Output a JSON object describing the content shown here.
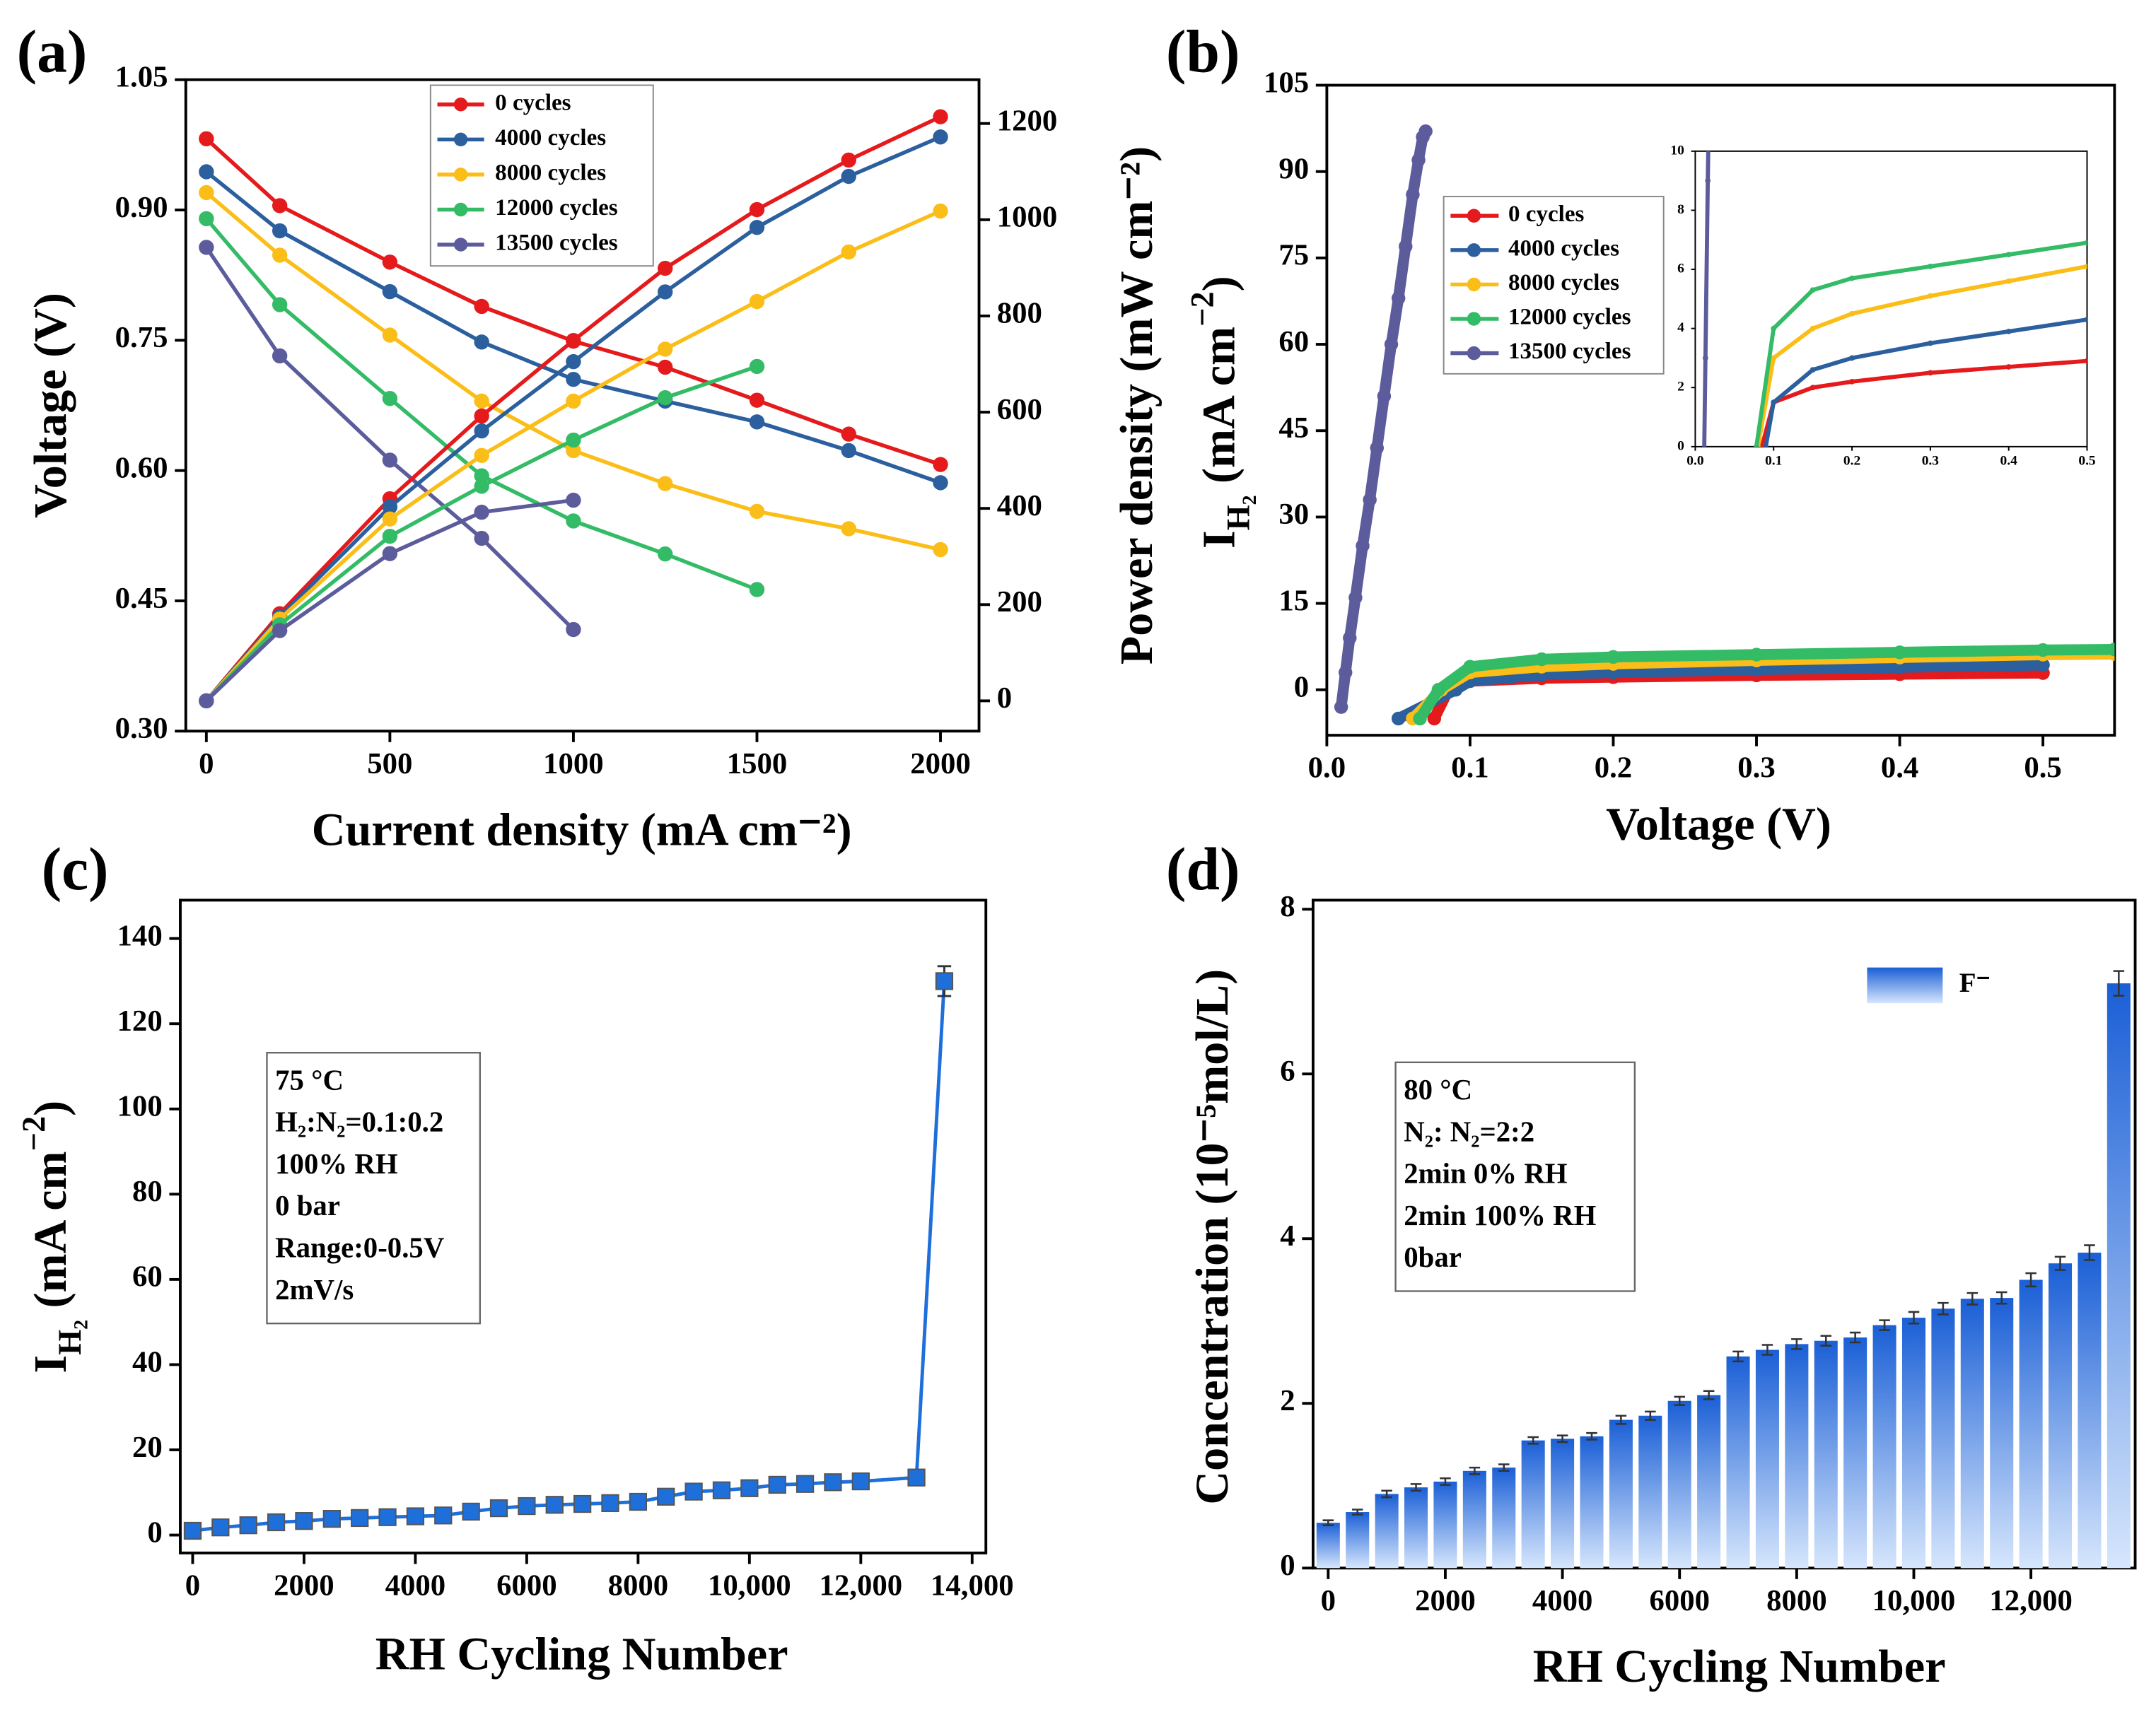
{
  "chart_data": [
    {
      "type": "line",
      "panel_label": "(a)",
      "x_label": "Current density (mA cm⁻²)",
      "y_label": "Voltage (V)",
      "y2_label": "Power density (mW cm⁻²)",
      "x": [
        0,
        200,
        500,
        750,
        1000,
        1250,
        1500,
        1750,
        2000
      ],
      "xlim": [
        -56,
        2105
      ],
      "xticks": [
        0,
        500,
        1000,
        1500,
        2000
      ],
      "ylim": [
        0.3,
        1.05
      ],
      "yticks": [
        {
          "value": 0.3,
          "label": "0.30"
        },
        {
          "value": 0.45,
          "label": "0.45"
        },
        {
          "value": 0.6,
          "label": "0.60"
        },
        {
          "value": 0.75,
          "label": "0.75"
        },
        {
          "value": 0.9,
          "label": "0.90"
        },
        1.05
      ],
      "y2lim": [
        -63,
        1291
      ],
      "y2ticks": [
        0,
        200,
        400,
        600,
        800,
        1000,
        1200
      ],
      "legend": "upper center",
      "series": [
        {
          "name": "0 cycles",
          "color": "#e41a1c",
          "values": [
            0.982,
            0.905,
            0.84,
            0.789,
            0.749,
            0.719,
            0.681,
            0.642,
            0.607
          ]
        },
        {
          "name": "4000 cycles",
          "color": "#2b5f9e",
          "values": [
            0.944,
            0.876,
            0.806,
            0.748,
            0.705,
            0.68,
            0.656,
            0.623,
            0.586
          ]
        },
        {
          "name": "8000 cycles",
          "color": "#fbbd17",
          "values": [
            0.92,
            0.848,
            0.756,
            0.68,
            0.623,
            0.585,
            0.553,
            0.533,
            0.509
          ]
        },
        {
          "name": "12000 cycles",
          "color": "#33bb66",
          "values": [
            0.89,
            0.791,
            0.683,
            0.594,
            0.542,
            0.504,
            0.463,
            null,
            null
          ]
        },
        {
          "name": "13500 cycles",
          "color": "#5c5b9c",
          "values": [
            0.857,
            0.732,
            0.612,
            0.522,
            0.417,
            null,
            null,
            null,
            null
          ]
        },
        {
          "axis": "y2",
          "color": "#e41a1c",
          "values": [
            0,
            181,
            420,
            592,
            749,
            899,
            1021,
            1124,
            1214
          ]
        },
        {
          "axis": "y2",
          "color": "#2b5f9e",
          "values": [
            0,
            175,
            403,
            561,
            705,
            850,
            984,
            1090,
            1172
          ]
        },
        {
          "axis": "y2",
          "color": "#fbbd17",
          "values": [
            0,
            170,
            378,
            510,
            623,
            731,
            830,
            933,
            1018
          ]
        },
        {
          "axis": "y2",
          "color": "#33bb66",
          "values": [
            0,
            158,
            342,
            446,
            542,
            630,
            695,
            null,
            null
          ]
        },
        {
          "axis": "y2",
          "color": "#5c5b9c",
          "values": [
            0,
            146,
            306,
            392,
            417,
            null,
            null,
            null,
            null
          ]
        }
      ]
    },
    {
      "type": "scatter",
      "panel_label": "(b)",
      "x_label": "Voltage (V)",
      "y_label": [
        [
          "I"
        ],
        [
          "H₂",
          "sub"
        ],
        [
          " (mA cm"
        ],
        [
          "−2",
          "sup"
        ],
        [
          ")"
        ]
      ],
      "xlim": [
        0,
        0.55
      ],
      "xticks": [
        {
          "value": 0,
          "label": "0.0"
        },
        {
          "value": 0.1,
          "label": "0.1"
        },
        {
          "value": 0.2,
          "label": "0.2"
        },
        {
          "value": 0.3,
          "label": "0.3"
        },
        {
          "value": 0.4,
          "label": "0.4"
        },
        {
          "value": 0.5,
          "label": "0.5"
        }
      ],
      "ylim": [
        -7.9,
        105
      ],
      "yticks": [
        0,
        15,
        30,
        45,
        60,
        75,
        90,
        105
      ],
      "legend": "upper left",
      "series": [
        {
          "name": "0 cycles",
          "color": "#e41a1c",
          "x": [
            0.075,
            0.085,
            0.1,
            0.15,
            0.2,
            0.3,
            0.4,
            0.5
          ],
          "values": [
            -5,
            0,
            1.5,
            2,
            2.2,
            2.5,
            2.7,
            2.9
          ]
        },
        {
          "name": "4000 cycles",
          "color": "#2b5f9e",
          "x": [
            0.05,
            0.09,
            0.1,
            0.15,
            0.2,
            0.3,
            0.4,
            0.5
          ],
          "values": [
            -5,
            0,
            1.5,
            2.6,
            3,
            3.5,
            3.9,
            4.3
          ]
        },
        {
          "name": "8000 cycles",
          "color": "#fbbd17",
          "x": [
            0.06,
            0.08,
            0.1,
            0.15,
            0.2,
            0.3,
            0.4,
            0.5,
            0.55
          ],
          "values": [
            -5,
            0,
            3,
            4,
            4.5,
            5.1,
            5.6,
            6.1,
            6.2
          ]
        },
        {
          "name": "12000 cycles",
          "color": "#33bb66",
          "x": [
            0.065,
            0.078,
            0.1,
            0.15,
            0.2,
            0.3,
            0.4,
            0.5,
            0.55
          ],
          "values": [
            -5,
            0,
            4,
            5.3,
            5.7,
            6.1,
            6.5,
            6.9,
            7
          ]
        },
        {
          "name": "13500 cycles",
          "color": "#5c5b9c",
          "x": [
            0.01,
            0.013,
            0.016,
            0.02,
            0.025,
            0.03,
            0.035,
            0.04,
            0.045,
            0.05,
            0.055,
            0.06,
            0.064,
            0.067,
            0.069
          ],
          "values": [
            -3,
            3,
            9,
            16,
            25,
            33,
            42,
            51,
            60,
            68,
            77,
            86,
            92,
            96,
            97
          ]
        }
      ],
      "inset": {
        "xlim": [
          0,
          0.5
        ],
        "xticks": [
          {
            "value": 0,
            "label": "0.0"
          },
          {
            "value": 0.1,
            "label": "0.1"
          },
          {
            "value": 0.2,
            "label": "0.2"
          },
          {
            "value": 0.3,
            "label": "0.3"
          },
          {
            "value": 0.4,
            "label": "0.4"
          },
          {
            "value": 0.5,
            "label": "0.5"
          }
        ],
        "ylim": [
          0,
          10
        ],
        "yticks": [
          0,
          2,
          4,
          6,
          8,
          10
        ]
      }
    },
    {
      "type": "errorbar",
      "panel_label": "(c)",
      "x_label": "RH Cycling Number",
      "y_label": [
        [
          "I"
        ],
        [
          "H₂",
          "sub"
        ],
        [
          " (mA cm"
        ],
        [
          "−2",
          "sup"
        ],
        [
          ")"
        ]
      ],
      "x": [
        0,
        500,
        1000,
        1500,
        2000,
        2500,
        3000,
        3500,
        4000,
        4500,
        5000,
        5500,
        6000,
        6500,
        7000,
        7500,
        8000,
        8500,
        9000,
        9500,
        10000,
        10500,
        11000,
        11500,
        12000,
        13000,
        13500
      ],
      "values": [
        1,
        1.8,
        2.3,
        3,
        3.3,
        3.8,
        4,
        4.2,
        4.4,
        4.6,
        5.5,
        6.3,
        6.8,
        7.1,
        7.3,
        7.5,
        7.8,
        9,
        10.2,
        10.5,
        11,
        11.8,
        12,
        12.4,
        12.6,
        13.5,
        130
      ],
      "errors": [
        0.6,
        0.6,
        0.6,
        0.6,
        0.6,
        0.6,
        0.6,
        0.6,
        0.6,
        0.6,
        0.6,
        0.6,
        0.6,
        0.6,
        0.6,
        0.6,
        0.6,
        0.6,
        0.6,
        0.6,
        0.6,
        0.6,
        0.6,
        0.6,
        0.6,
        0.6,
        3.5
      ],
      "color": "#1e6fd9",
      "xlim": [
        -222,
        14247
      ],
      "xticks": [
        0,
        2000,
        4000,
        6000,
        8000,
        {
          "value": 10000,
          "label": "10,000"
        },
        {
          "value": 12000,
          "label": "12,000"
        },
        {
          "value": 14000,
          "label": "14,000"
        }
      ],
      "ylim": [
        -4.2,
        149
      ],
      "yticks": [
        0,
        20,
        40,
        60,
        80,
        100,
        120,
        140
      ],
      "annotation": [
        "75 °C",
        "H₂:N₂=0.1:0.2",
        "100% RH",
        "0 bar",
        "Range:0-0.5V",
        "2mV/s"
      ]
    },
    {
      "type": "bar",
      "panel_label": "(d)",
      "x_label": "RH Cycling Number",
      "y_label": "Concentration (10⁻⁵mol/L)",
      "xlim": [
        -258,
        13780
      ],
      "xticks": [
        0,
        2000,
        4000,
        6000,
        8000,
        {
          "value": 10000,
          "label": "10,000"
        },
        {
          "value": 12000,
          "label": "12,000"
        }
      ],
      "ylim": [
        0,
        8.11
      ],
      "yticks": [
        0,
        2,
        4,
        6,
        8
      ],
      "legend": "upper right",
      "series": [
        {
          "name": "F⁻",
          "color": "#1e64dc",
          "x": [
            0,
            500,
            1000,
            1500,
            2000,
            2500,
            3000,
            3500,
            4000,
            4500,
            5000,
            5500,
            6000,
            6500,
            7000,
            7500,
            8000,
            8500,
            9000,
            9500,
            10000,
            10500,
            11000,
            11500,
            12000,
            12500,
            13000,
            13500
          ],
          "values": [
            0.55,
            0.68,
            0.9,
            0.98,
            1.05,
            1.18,
            1.22,
            1.55,
            1.57,
            1.6,
            1.8,
            1.85,
            2.03,
            2.1,
            2.57,
            2.65,
            2.72,
            2.76,
            2.8,
            2.95,
            3.04,
            3.15,
            3.27,
            3.28,
            3.5,
            3.7,
            3.83,
            7.1
          ],
          "errors": [
            0.03,
            0.03,
            0.04,
            0.04,
            0.04,
            0.04,
            0.04,
            0.04,
            0.04,
            0.04,
            0.05,
            0.05,
            0.05,
            0.05,
            0.06,
            0.06,
            0.06,
            0.06,
            0.06,
            0.06,
            0.07,
            0.07,
            0.07,
            0.07,
            0.08,
            0.08,
            0.09,
            0.15
          ]
        }
      ],
      "annotation": [
        "80 °C",
        "N₂:  N₂=2:2",
        "2min 0% RH",
        "2min 100% RH",
        "0bar"
      ]
    }
  ]
}
